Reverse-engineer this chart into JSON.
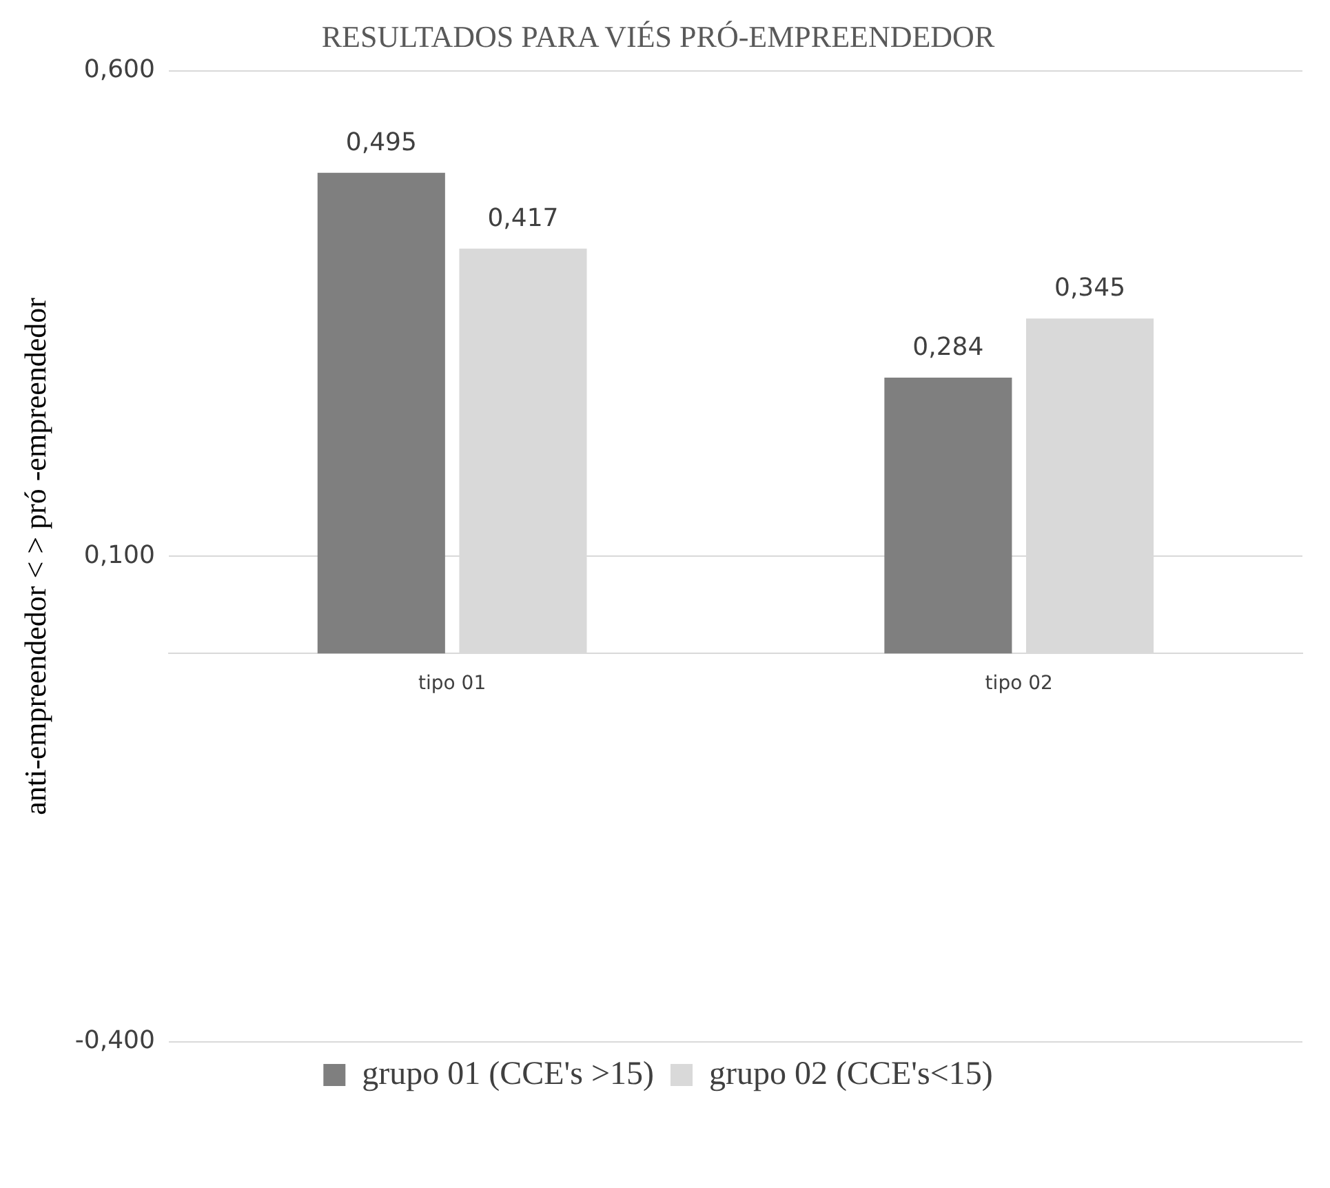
{
  "chart_data": {
    "type": "bar",
    "title": "RESULTADOS PARA VIÉS PRÓ-EMPREENDEDOR",
    "ylabel": "anti-empreendedor < > pró -empreendedor",
    "categories": [
      "tipo 01",
      "tipo 02"
    ],
    "series": [
      {
        "name": "grupo 01 (CCE's >15)",
        "color": "#7f7f7f",
        "values": [
          0.495,
          0.284
        ],
        "value_labels": [
          "0,495",
          "0,284"
        ]
      },
      {
        "name": "grupo 02 (CCE's<15)",
        "color": "#d9d9d9",
        "values": [
          0.417,
          0.345
        ],
        "value_labels": [
          "0,417",
          "0,345"
        ]
      }
    ],
    "ylim": [
      -0.4,
      0.6
    ],
    "yticks": [
      {
        "value": 0.6,
        "label": "0,600"
      },
      {
        "value": 0.1,
        "label": "0,100"
      },
      {
        "value": -0.4,
        "label": "-0,400"
      }
    ],
    "grid": "y",
    "legend": "bottom"
  }
}
